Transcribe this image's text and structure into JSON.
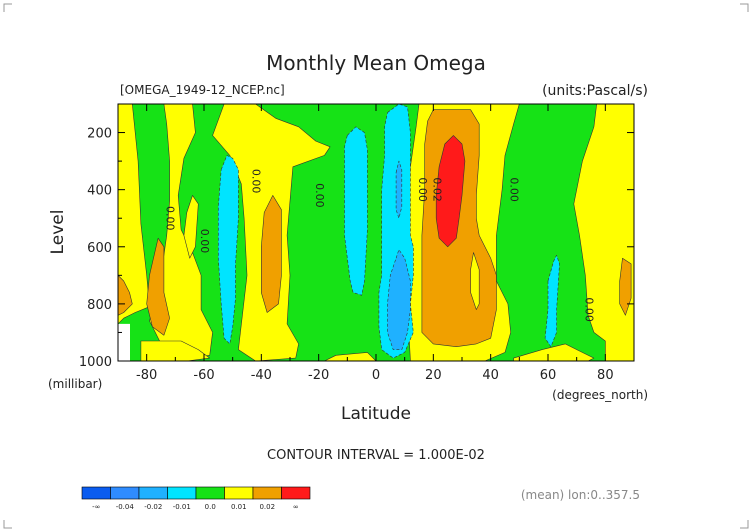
{
  "chart_data": {
    "type": "contour",
    "title": "Monthly Mean Omega",
    "file_label": "[OMEGA_1949-12_NCEP.nc]",
    "units_label": "(units:Pascal/s)",
    "xlabel": "Latitude",
    "xunit": "(degrees_north)",
    "ylabel": "Level",
    "yunit": "(millibar)",
    "xlim": [
      -90,
      90
    ],
    "ylim": [
      1000,
      100
    ],
    "y_inverted": true,
    "x_ticks": [
      -80,
      -60,
      -40,
      -20,
      0,
      20,
      40,
      60,
      80
    ],
    "y_ticks": [
      200,
      400,
      600,
      800,
      1000
    ],
    "contour_interval_text": "CONTOUR INTERVAL = 1.000E-02",
    "footer_text": "(mean) lon:0..357.5",
    "colorbar": {
      "bins": [
        {
          "color": "#0a5cf0",
          "label": "-∞"
        },
        {
          "color": "#2f8cff",
          "label": "-0.04"
        },
        {
          "color": "#1fb1ff",
          "label": "-0.02"
        },
        {
          "color": "#00e4ff",
          "label": "-0.01"
        },
        {
          "color": "#16e216",
          "label": "0.0"
        },
        {
          "color": "#ffff00",
          "label": "0.01"
        },
        {
          "color": "#f0a000",
          "label": "0.02"
        },
        {
          "color": "#ff1a1a",
          "label": "∞"
        }
      ],
      "tick_labels": [
        "-∞",
        "-0.04",
        "-0.02",
        "-0.01",
        "0.0",
        "0.01",
        "0.02",
        "∞"
      ]
    },
    "contour_labels": [
      {
        "text": "0.00",
        "lat": -73,
        "lev": 500
      },
      {
        "text": "0.00",
        "lat": -61,
        "lev": 580
      },
      {
        "text": "0.00",
        "lat": -43,
        "lev": 370
      },
      {
        "text": "0.00",
        "lat": -21,
        "lev": 420
      },
      {
        "text": "0.00",
        "lat": 15,
        "lev": 400
      },
      {
        "text": "0.02",
        "lat": 20,
        "lev": 400
      },
      {
        "text": "0.00",
        "lat": 47,
        "lev": 400
      },
      {
        "text": "0.00",
        "lat": 73,
        "lev": 820
      }
    ],
    "regions": [
      {
        "name": "green-background",
        "level": "0.00 to 0.01",
        "color": "#16e216",
        "poly": [
          [
            -90,
            100
          ],
          [
            90,
            100
          ],
          [
            90,
            1000
          ],
          [
            -90,
            1000
          ]
        ]
      },
      {
        "name": "yellow-south-edge",
        "level": "0.01 to 0.02",
        "color": "#ffff00",
        "poly": [
          [
            -90,
            100
          ],
          [
            -85,
            100
          ],
          [
            -83,
            300
          ],
          [
            -82,
            520
          ],
          [
            -80,
            700
          ],
          [
            -79,
            810
          ],
          [
            -84,
            830
          ],
          [
            -88,
            850
          ],
          [
            -90,
            870
          ]
        ]
      },
      {
        "name": "yellow-south-large",
        "level": "0.01 to 0.02",
        "color": "#ffff00",
        "poly": [
          [
            -74,
            100
          ],
          [
            -64,
            100
          ],
          [
            -63,
            200
          ],
          [
            -67,
            290
          ],
          [
            -69,
            420
          ],
          [
            -68,
            540
          ],
          [
            -64,
            620
          ],
          [
            -61,
            700
          ],
          [
            -61,
            820
          ],
          [
            -57,
            900
          ],
          [
            -58,
            980
          ],
          [
            -71,
            1000
          ],
          [
            -74,
            960
          ],
          [
            -77,
            900
          ],
          [
            -79,
            860
          ],
          [
            -75,
            700
          ],
          [
            -73,
            560
          ],
          [
            -72,
            440
          ],
          [
            -72,
            300
          ],
          [
            -73,
            170
          ]
        ]
      },
      {
        "name": "yellow-south-strip",
        "level": "0.01 to 0.02",
        "color": "#ffff00",
        "poly": [
          [
            -66,
            480
          ],
          [
            -64,
            420
          ],
          [
            -62,
            450
          ],
          [
            -63,
            600
          ],
          [
            -65,
            640
          ],
          [
            -67,
            560
          ]
        ]
      },
      {
        "name": "yellow-south-mid",
        "level": "0.01 to 0.02",
        "color": "#ffff00",
        "poly": [
          [
            -53,
            100
          ],
          [
            -42,
            100
          ],
          [
            -35,
            150
          ],
          [
            -27,
            180
          ],
          [
            -21,
            230
          ],
          [
            -16,
            250
          ],
          [
            -18,
            280
          ],
          [
            -29,
            320
          ],
          [
            -31,
            560
          ],
          [
            -30,
            700
          ],
          [
            -31,
            870
          ],
          [
            -27,
            940
          ],
          [
            -28,
            990
          ],
          [
            -42,
            1000
          ],
          [
            -48,
            960
          ],
          [
            -45,
            700
          ],
          [
            -46,
            500
          ],
          [
            -47,
            380
          ],
          [
            -51,
            280
          ],
          [
            -57,
            210
          ]
        ]
      },
      {
        "name": "yellow-south-bottom",
        "level": "0.01 to 0.02",
        "color": "#ffff00",
        "poly": [
          [
            -82,
            930
          ],
          [
            -68,
            930
          ],
          [
            -62,
            960
          ],
          [
            -58,
            990
          ],
          [
            -66,
            1000
          ],
          [
            -82,
            1000
          ]
        ]
      },
      {
        "name": "yellow-center-bottom",
        "level": "0.01 to 0.02",
        "color": "#ffff00",
        "poly": [
          [
            -14,
            980
          ],
          [
            -3,
            970
          ],
          [
            0,
            1000
          ],
          [
            -18,
            1000
          ]
        ]
      },
      {
        "name": "yellow-north",
        "level": "0.01 to 0.02",
        "color": "#ffff00",
        "poly": [
          [
            15,
            100
          ],
          [
            50,
            100
          ],
          [
            48,
            170
          ],
          [
            45,
            280
          ],
          [
            44,
            400
          ],
          [
            42,
            560
          ],
          [
            42,
            720
          ],
          [
            46,
            800
          ],
          [
            47,
            900
          ],
          [
            45,
            970
          ],
          [
            38,
            1000
          ],
          [
            12,
            1000
          ],
          [
            11,
            800
          ],
          [
            11,
            560
          ],
          [
            12,
            320
          ],
          [
            14,
            180
          ]
        ]
      },
      {
        "name": "yellow-north-right",
        "level": "0.01 to 0.02",
        "color": "#ffff00",
        "poly": [
          [
            77,
            100
          ],
          [
            90,
            100
          ],
          [
            90,
            1000
          ],
          [
            80,
            1000
          ],
          [
            80,
            930
          ],
          [
            76,
            900
          ],
          [
            74,
            840
          ],
          [
            73,
            700
          ],
          [
            71,
            560
          ],
          [
            69,
            450
          ],
          [
            72,
            300
          ],
          [
            76,
            180
          ]
        ]
      },
      {
        "name": "yellow-north-bottom",
        "level": "0.01 to 0.02",
        "color": "#ffff00",
        "poly": [
          [
            48,
            990
          ],
          [
            58,
            960
          ],
          [
            66,
            940
          ],
          [
            70,
            960
          ],
          [
            76,
            990
          ],
          [
            74,
            1000
          ],
          [
            48,
            1000
          ]
        ]
      },
      {
        "name": "orange-far-south",
        "level": "0.02 and above",
        "color": "#f0a000",
        "poly": [
          [
            -90,
            700
          ],
          [
            -88,
            720
          ],
          [
            -86,
            760
          ],
          [
            -85,
            800
          ],
          [
            -88,
            830
          ],
          [
            -90,
            840
          ]
        ]
      },
      {
        "name": "orange-south-a",
        "level": "0.02 and above",
        "color": "#f0a000",
        "poly": [
          [
            -79,
            700
          ],
          [
            -76,
            570
          ],
          [
            -74,
            600
          ],
          [
            -74,
            760
          ],
          [
            -72,
            850
          ],
          [
            -74,
            910
          ],
          [
            -78,
            880
          ],
          [
            -80,
            800
          ]
        ]
      },
      {
        "name": "orange-south-b",
        "level": "0.02 and above",
        "color": "#f0a000",
        "poly": [
          [
            -39,
            480
          ],
          [
            -36,
            420
          ],
          [
            -33,
            470
          ],
          [
            -33,
            700
          ],
          [
            -34,
            800
          ],
          [
            -38,
            830
          ],
          [
            -40,
            760
          ],
          [
            -40,
            600
          ]
        ]
      },
      {
        "name": "orange-north",
        "level": "0.02 and above",
        "color": "#f0a000",
        "poly": [
          [
            20,
            120
          ],
          [
            33,
            120
          ],
          [
            36,
            170
          ],
          [
            36,
            280
          ],
          [
            35,
            420
          ],
          [
            35,
            500
          ],
          [
            36,
            560
          ],
          [
            40,
            640
          ],
          [
            42,
            700
          ],
          [
            42,
            820
          ],
          [
            40,
            920
          ],
          [
            35,
            940
          ],
          [
            28,
            950
          ],
          [
            20,
            940
          ],
          [
            16,
            900
          ],
          [
            16,
            700
          ],
          [
            16,
            560
          ],
          [
            17,
            400
          ],
          [
            17,
            240
          ],
          [
            18,
            160
          ]
        ]
      },
      {
        "name": "orange-north-right",
        "level": "0.02 and above",
        "color": "#f0a000",
        "poly": [
          [
            86,
            640
          ],
          [
            89,
            660
          ],
          [
            89,
            780
          ],
          [
            87,
            840
          ],
          [
            85,
            800
          ],
          [
            85,
            720
          ]
        ]
      },
      {
        "name": "yellow-north-inner",
        "level": "0.01 to 0.02",
        "color": "#ffff00",
        "poly": [
          [
            34,
            620
          ],
          [
            36,
            680
          ],
          [
            36,
            800
          ],
          [
            35,
            820
          ],
          [
            33,
            760
          ],
          [
            33,
            680
          ]
        ]
      },
      {
        "name": "red-north",
        "level": "0.02 and above (inner)",
        "color": "#ff1a1a",
        "poly": [
          [
            24,
            240
          ],
          [
            27,
            210
          ],
          [
            30,
            240
          ],
          [
            31,
            300
          ],
          [
            30,
            420
          ],
          [
            29,
            500
          ],
          [
            28,
            570
          ],
          [
            25,
            600
          ],
          [
            22,
            570
          ],
          [
            21,
            500
          ],
          [
            21,
            420
          ],
          [
            22,
            320
          ]
        ]
      },
      {
        "name": "cyan-south-a",
        "level": "-0.01 to 0.00",
        "color": "#00e4ff",
        "poly": [
          [
            -54,
            330
          ],
          [
            -52,
            280
          ],
          [
            -50,
            290
          ],
          [
            -48,
            330
          ],
          [
            -48,
            500
          ],
          [
            -49,
            660
          ],
          [
            -49,
            780
          ],
          [
            -50,
            880
          ],
          [
            -51,
            940
          ],
          [
            -53,
            920
          ],
          [
            -54,
            800
          ],
          [
            -55,
            640
          ],
          [
            -55,
            460
          ]
        ]
      },
      {
        "name": "cyan-south-b",
        "level": "-0.01 to 0.00",
        "color": "#00e4ff",
        "poly": [
          [
            -10,
            210
          ],
          [
            -7,
            180
          ],
          [
            -4,
            200
          ],
          [
            -3,
            260
          ],
          [
            -3,
            360
          ],
          [
            -3,
            540
          ],
          [
            -4,
            720
          ],
          [
            -5,
            770
          ],
          [
            -8,
            760
          ],
          [
            -9,
            720
          ],
          [
            -11,
            560
          ],
          [
            -11,
            360
          ],
          [
            -11,
            250
          ]
        ]
      },
      {
        "name": "cyan-center",
        "level": "-0.01 to 0.00",
        "color": "#00e4ff",
        "poly": [
          [
            4,
            130
          ],
          [
            8,
            100
          ],
          [
            11,
            110
          ],
          [
            12,
            200
          ],
          [
            12,
            320
          ],
          [
            12,
            450
          ],
          [
            12,
            560
          ],
          [
            13,
            600
          ],
          [
            13,
            700
          ],
          [
            12,
            800
          ],
          [
            13,
            900
          ],
          [
            10,
            970
          ],
          [
            6,
            990
          ],
          [
            2,
            960
          ],
          [
            1,
            880
          ],
          [
            1,
            760
          ],
          [
            2,
            700
          ],
          [
            2,
            560
          ],
          [
            2,
            400
          ],
          [
            3,
            280
          ],
          [
            3,
            180
          ]
        ]
      },
      {
        "name": "cyan-north",
        "level": "-0.01 to 0.00",
        "color": "#00e4ff",
        "poly": [
          [
            60,
            720
          ],
          [
            62,
            650
          ],
          [
            63,
            630
          ],
          [
            64,
            660
          ],
          [
            63,
            820
          ],
          [
            63,
            900
          ],
          [
            61,
            950
          ],
          [
            59,
            920
          ],
          [
            60,
            820
          ]
        ]
      },
      {
        "name": "blue-center-upper",
        "level": "-0.02 to -0.01",
        "color": "#1fb1ff",
        "poly": [
          [
            7,
            340
          ],
          [
            8,
            300
          ],
          [
            9,
            330
          ],
          [
            9,
            460
          ],
          [
            8,
            500
          ],
          [
            7,
            470
          ]
        ]
      },
      {
        "name": "blue-center-lower",
        "level": "-0.02 to -0.01",
        "color": "#1fb1ff",
        "poly": [
          [
            7,
            640
          ],
          [
            8,
            610
          ],
          [
            10,
            640
          ],
          [
            12,
            720
          ],
          [
            12,
            820
          ],
          [
            11,
            900
          ],
          [
            9,
            960
          ],
          [
            6,
            960
          ],
          [
            4,
            900
          ],
          [
            4,
            800
          ],
          [
            5,
            700
          ]
        ]
      }
    ]
  }
}
